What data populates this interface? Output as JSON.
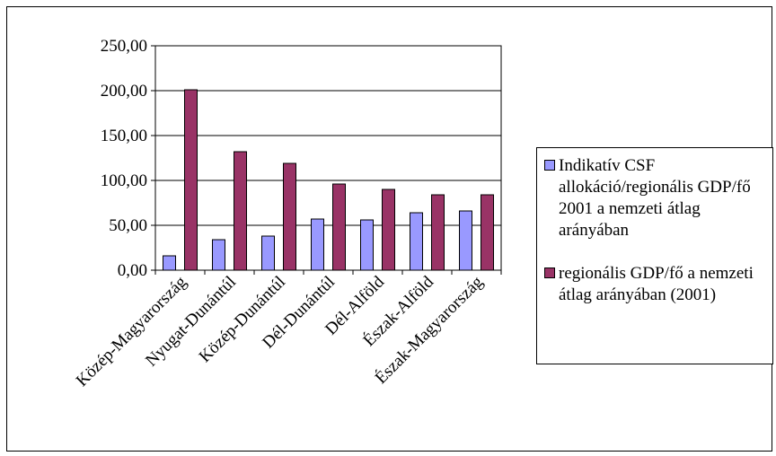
{
  "chart_data": {
    "type": "bar",
    "categories": [
      "Közép-Magyarország",
      "Nyugat-Dunántúl",
      "Közép-Dunántúl",
      "Dél-Dunántúl",
      "Dél-Alföld",
      "Észak-Alföld",
      "Észak-Magyarország"
    ],
    "series": [
      {
        "name": "Indikatív CSF allokáció/regionális GDP/fő 2001 a nemzeti átlag arányában",
        "color": "#9999ff",
        "values": [
          16,
          34,
          38,
          57,
          56,
          64,
          66
        ]
      },
      {
        "name": "regionális GDP/fő a nemzeti átlag arányában (2001)",
        "color": "#993366",
        "values": [
          201,
          132,
          119,
          96,
          90,
          84,
          84
        ]
      }
    ],
    "yticks": [
      "0,00",
      "50,00",
      "100,00",
      "150,00",
      "200,00",
      "250,00"
    ],
    "ylim": [
      0,
      250
    ],
    "grid": true,
    "legend": "right"
  }
}
